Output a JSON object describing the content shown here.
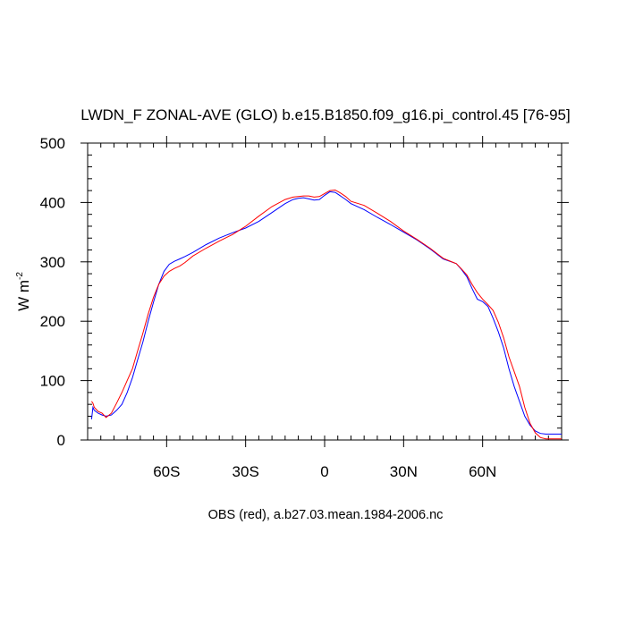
{
  "chart_data": {
    "type": "line",
    "title": "LWDN_F ZONAL-AVE (GLO) b.e15.B1850.f09_g16.pi_control.45 [76-95]",
    "xlabel": "OBS (red), a.b27.03.mean.1984-2006.nc",
    "ylabel": "W m",
    "ylabel_superscript": "-2",
    "xlim": [
      -90,
      90
    ],
    "ylim": [
      0,
      500
    ],
    "x_ticks": [
      {
        "value": -60,
        "label": "60S"
      },
      {
        "value": -30,
        "label": "30S"
      },
      {
        "value": 0,
        "label": "0"
      },
      {
        "value": 30,
        "label": "30N"
      },
      {
        "value": 60,
        "label": "60N"
      }
    ],
    "y_ticks": [
      {
        "value": 0,
        "label": "0"
      },
      {
        "value": 100,
        "label": "100"
      },
      {
        "value": 200,
        "label": "200"
      },
      {
        "value": 300,
        "label": "300"
      },
      {
        "value": 400,
        "label": "400"
      },
      {
        "value": 500,
        "label": "500"
      }
    ],
    "series": [
      {
        "color": "#0000ff",
        "x": [
          -88.5,
          -88,
          -87.5,
          -86,
          -84.5,
          -83,
          -81,
          -79,
          -77,
          -75,
          -73,
          -71,
          -69,
          -67,
          -65,
          -63,
          -61,
          -59,
          -57,
          -55,
          -53,
          -50,
          -45,
          -40,
          -35,
          -30,
          -25,
          -20,
          -15,
          -12,
          -10,
          -8,
          -6,
          -4,
          -2,
          0,
          2,
          4,
          6,
          8,
          10,
          15,
          20,
          25,
          30,
          35,
          40,
          45,
          50,
          52,
          54,
          56,
          58,
          60,
          62,
          64,
          66,
          68,
          70,
          72,
          74,
          76,
          78,
          80,
          82,
          84,
          86,
          90
        ],
        "y": [
          35,
          55,
          50,
          45,
          42,
          40,
          42,
          50,
          60,
          80,
          105,
          135,
          165,
          200,
          232,
          262,
          284,
          296,
          301,
          305,
          309,
          316,
          329,
          340,
          349,
          357,
          368,
          383,
          398,
          405,
          407,
          408,
          406,
          404,
          405,
          412,
          418,
          417,
          411,
          405,
          398,
          388,
          375,
          363,
          350,
          337,
          322,
          305,
          297,
          287,
          275,
          255,
          237,
          233,
          225,
          205,
          182,
          155,
          120,
          90,
          65,
          40,
          25,
          15,
          11,
          10,
          10,
          10
        ]
      },
      {
        "color": "#ff0000",
        "x": [
          -88.5,
          -88,
          -87.5,
          -86,
          -84.5,
          -83,
          -81,
          -79,
          -77,
          -75,
          -73,
          -71,
          -69,
          -67,
          -65,
          -63,
          -61,
          -59,
          -57,
          -55,
          -53,
          -50,
          -45,
          -40,
          -35,
          -30,
          -25,
          -20,
          -15,
          -12,
          -10,
          -8,
          -6,
          -4,
          -2,
          0,
          2,
          4,
          6,
          8,
          10,
          15,
          20,
          25,
          30,
          35,
          40,
          45,
          50,
          52,
          54,
          56,
          58,
          60,
          62,
          64,
          66,
          68,
          70,
          72,
          74,
          76,
          78,
          80,
          82,
          84,
          86,
          90
        ],
        "y": [
          65,
          62,
          55,
          48,
          45,
          38,
          45,
          62,
          80,
          100,
          120,
          150,
          180,
          212,
          240,
          262,
          276,
          284,
          289,
          293,
          299,
          310,
          323,
          335,
          346,
          360,
          377,
          393,
          405,
          409,
          410,
          411,
          411,
          409,
          410,
          415,
          420,
          421,
          416,
          410,
          402,
          395,
          382,
          368,
          352,
          338,
          323,
          306,
          297,
          288,
          278,
          262,
          248,
          237,
          228,
          218,
          198,
          172,
          140,
          115,
          90,
          55,
          28,
          12,
          4,
          2,
          2,
          2
        ]
      }
    ]
  }
}
